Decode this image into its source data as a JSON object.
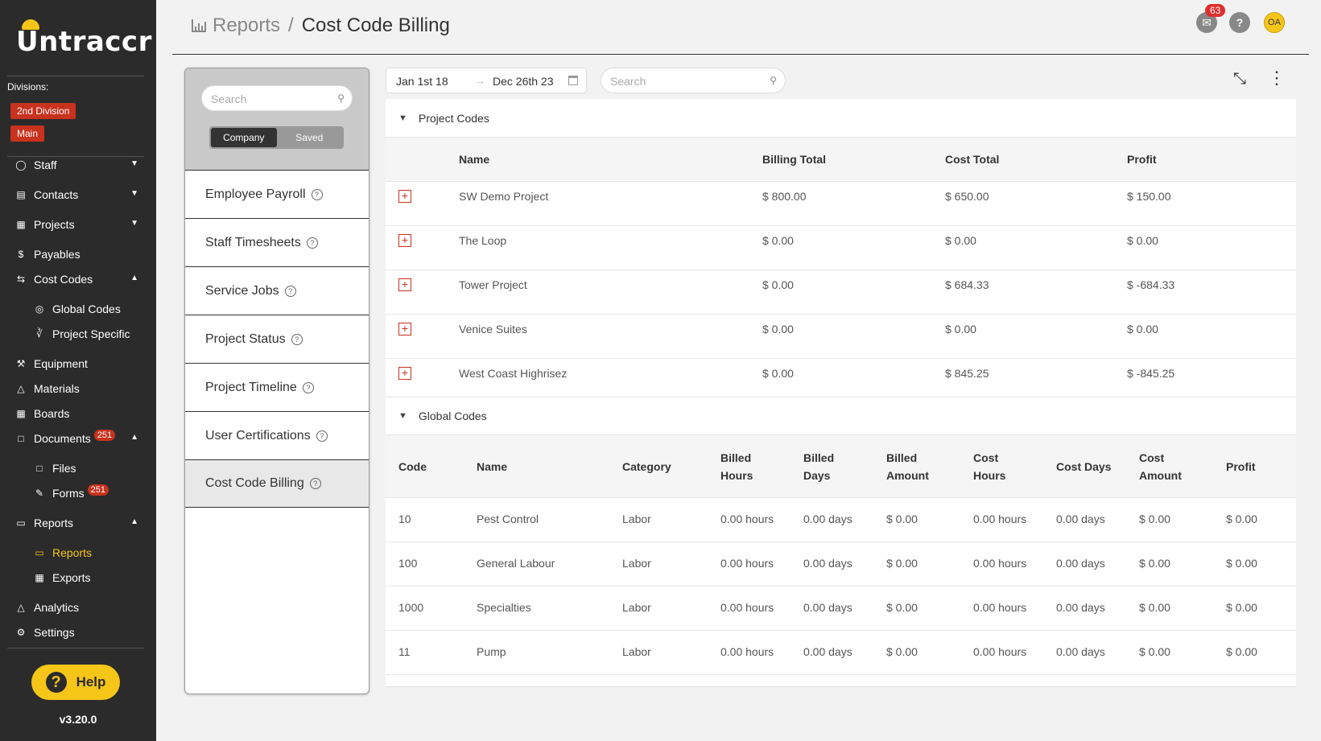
{
  "app": {
    "logo": "Untraccr",
    "version": "v3.20.0",
    "help_label": "Help"
  },
  "sidebar": {
    "divisions_label": "Divisions:",
    "divisions": [
      "2nd Division",
      "Main"
    ],
    "items": [
      {
        "label": "Staff",
        "icon": "person-icon"
      },
      {
        "label": "Contacts",
        "icon": "id-card-icon"
      },
      {
        "label": "Projects",
        "icon": "project-icon"
      },
      {
        "label": "Payables",
        "icon": "dollar-circle-icon"
      },
      {
        "label": "Cost Codes",
        "icon": "swap-icon"
      },
      {
        "label": "Global Codes",
        "icon": "globe-icon"
      },
      {
        "label": "Project Specific",
        "icon": "share-icon"
      },
      {
        "label": "Equipment",
        "icon": "wrench-icon"
      },
      {
        "label": "Materials",
        "icon": "cluster-icon"
      },
      {
        "label": "Boards",
        "icon": "board-icon"
      },
      {
        "label": "Documents",
        "icon": "document-icon",
        "badge": "251"
      },
      {
        "label": "Files",
        "icon": "file-icon"
      },
      {
        "label": "Forms",
        "icon": "form-icon",
        "badge": "251"
      },
      {
        "label": "Reports",
        "icon": "bar-chart-icon"
      },
      {
        "label": "Reports",
        "icon": "bar-chart-icon"
      },
      {
        "label": "Exports",
        "icon": "table-icon"
      },
      {
        "label": "Analytics",
        "icon": "flask-icon"
      },
      {
        "label": "Settings",
        "icon": "gear-icon"
      }
    ]
  },
  "header": {
    "breadcrumb_parent": "Reports",
    "breadcrumb_sep": "/",
    "title": "Cost Code Billing",
    "mail_count": "63",
    "help_glyph": "?",
    "user_initials": "OA"
  },
  "report_list": {
    "search_placeholder": "Search",
    "toggle": [
      "Company",
      "Saved"
    ],
    "reports": [
      "Employee Payroll",
      "Staff Timesheets",
      "Service Jobs",
      "Project Status",
      "Project Timeline",
      "User Certifications",
      "Cost Code Billing"
    ]
  },
  "filters": {
    "date_start": "Jan 1st 18",
    "date_end": "Dec 26th 23",
    "search_placeholder": "Search"
  },
  "project_codes": {
    "title": "Project Codes",
    "columns": [
      "Name",
      "Billing Total",
      "Cost Total",
      "Profit"
    ],
    "rows": [
      [
        "SW Demo Project",
        "$ 800.00",
        "$ 650.00",
        "$ 150.00"
      ],
      [
        "The Loop",
        "$ 0.00",
        "$ 0.00",
        "$ 0.00"
      ],
      [
        "Tower Project",
        "$ 0.00",
        "$ 684.33",
        "$ -684.33"
      ],
      [
        "Venice Suites",
        "$ 0.00",
        "$ 0.00",
        "$ 0.00"
      ],
      [
        "West Coast Highrisez",
        "$ 0.00",
        "$ 845.25",
        "$ -845.25"
      ]
    ]
  },
  "global_codes": {
    "title": "Global Codes",
    "columns": [
      [
        "Code"
      ],
      [
        "Name"
      ],
      [
        "Category"
      ],
      [
        "Billed",
        "Hours"
      ],
      [
        "Billed",
        "Days"
      ],
      [
        "Billed",
        "Amount"
      ],
      [
        "Cost",
        "Hours"
      ],
      [
        "Cost Days"
      ],
      [
        "Cost",
        "Amount"
      ],
      [
        "Profit"
      ]
    ],
    "rows": [
      [
        "10",
        "Pest Control",
        "Labor",
        "0.00 hours",
        "0.00 days",
        "$ 0.00",
        "0.00 hours",
        "0.00 days",
        "$ 0.00",
        "$ 0.00"
      ],
      [
        "100",
        "General Labour",
        "Labor",
        "0.00 hours",
        "0.00 days",
        "$ 0.00",
        "0.00 hours",
        "0.00 days",
        "$ 0.00",
        "$ 0.00"
      ],
      [
        "1000",
        "Specialties",
        "Labor",
        "0.00 hours",
        "0.00 days",
        "$ 0.00",
        "0.00 hours",
        "0.00 days",
        "$ 0.00",
        "$ 0.00"
      ],
      [
        "11",
        "Pump",
        "Labor",
        "0.00 hours",
        "0.00 days",
        "$ 0.00",
        "0.00 hours",
        "0.00 days",
        "$ 0.00",
        "$ 0.00"
      ]
    ]
  },
  "colors": {
    "sidebar_bg": "#2b2b2b",
    "accent_yellow": "#f5c518",
    "badge_red": "#c8321e"
  }
}
